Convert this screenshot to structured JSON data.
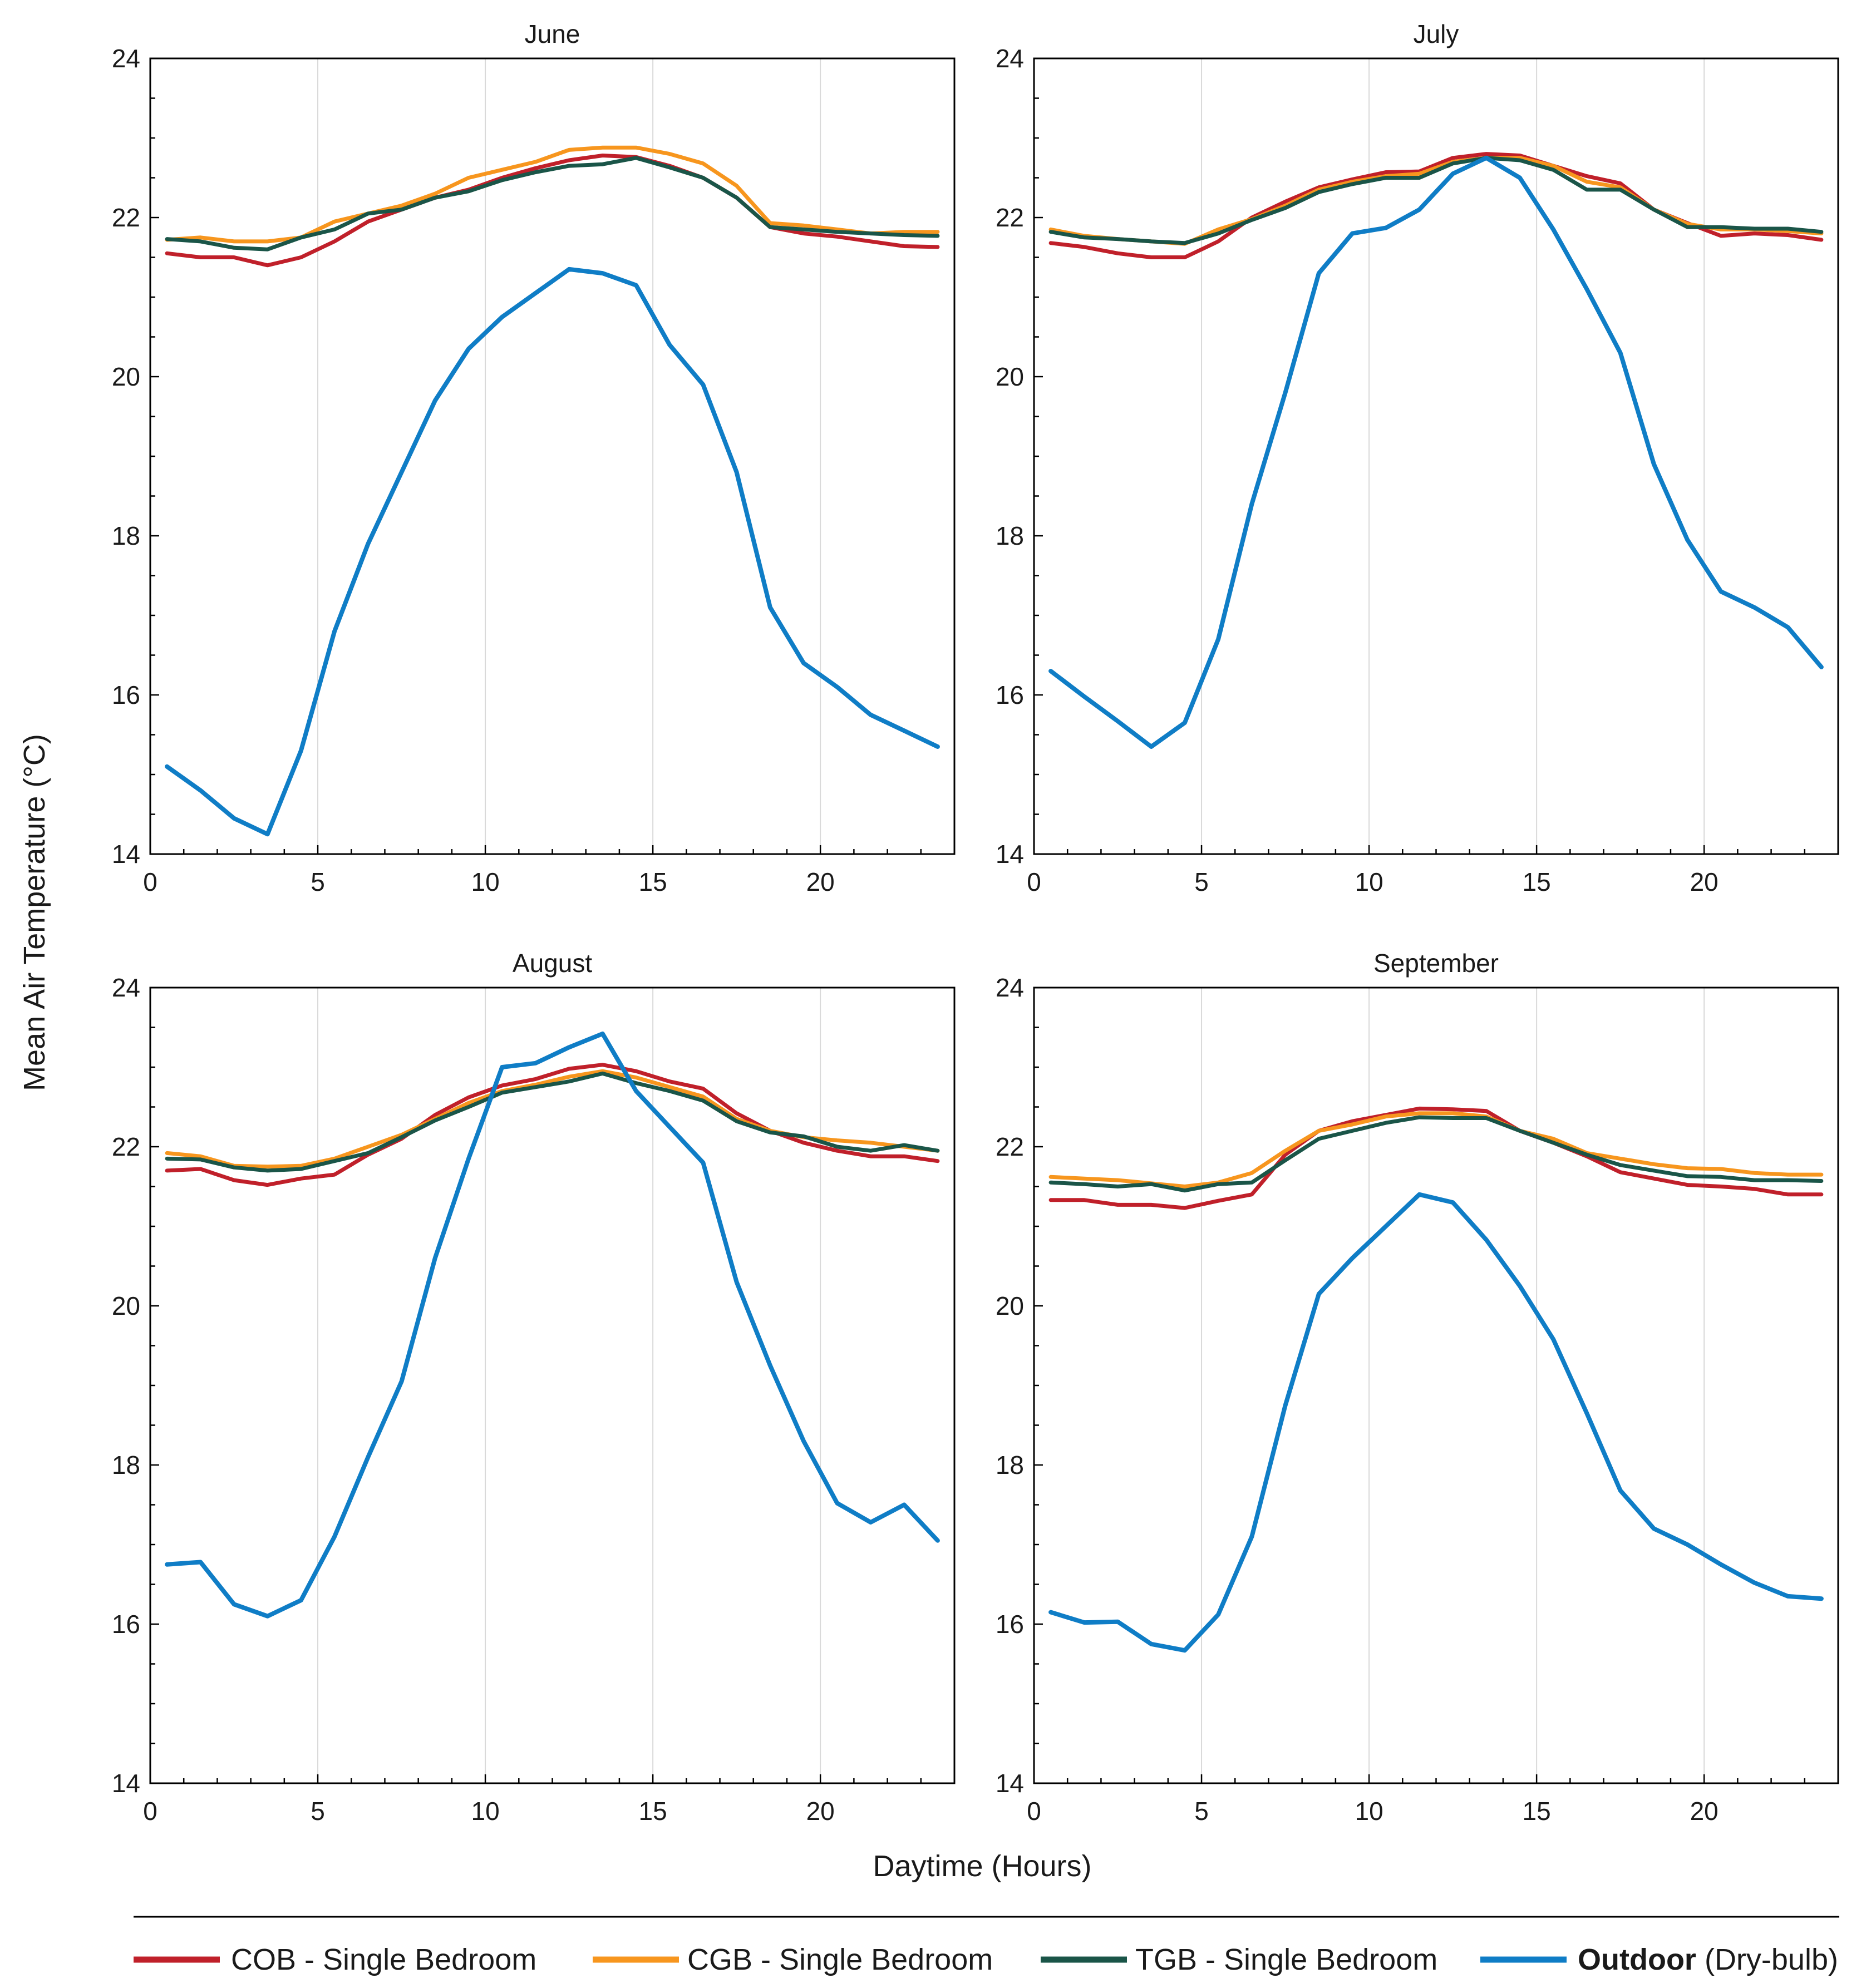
{
  "chart_data": {
    "type": "line",
    "ylabel": "Mean Air Temperature (°C)",
    "xlabel": "Daytime (Hours)",
    "xlim": [
      0,
      24
    ],
    "ylim": [
      14,
      24
    ],
    "xticks": [
      0,
      5,
      10,
      15,
      20
    ],
    "yticks": [
      14,
      16,
      18,
      20,
      22,
      24
    ],
    "grid": "vertical",
    "legend_position": "bottom",
    "hours": [
      0.5,
      1.5,
      2.5,
      3.5,
      4.5,
      5.5,
      6.5,
      7.5,
      8.5,
      9.5,
      10.5,
      11.5,
      12.5,
      13.5,
      14.5,
      15.5,
      16.5,
      17.5,
      18.5,
      19.5,
      20.5,
      21.5,
      22.5,
      23.5
    ],
    "series": [
      {
        "key": "cob",
        "name": "COB - Single Bedroom",
        "color": "#C0202A"
      },
      {
        "key": "cgb",
        "name": "CGB - Single Bedroom",
        "color": "#F7961E"
      },
      {
        "key": "tgb",
        "name": "TGB - Single Bedroom",
        "color": "#1A5548"
      },
      {
        "key": "outdoor",
        "name_bold": "Outdoor",
        "name_rest": " (Dry-bulb)",
        "color": "#0F7DC6"
      }
    ],
    "panels": [
      {
        "title": "June",
        "cob": [
          21.55,
          21.5,
          21.5,
          21.4,
          21.5,
          21.7,
          21.95,
          22.1,
          22.25,
          22.35,
          22.5,
          22.62,
          22.72,
          22.78,
          22.76,
          22.65,
          22.5,
          22.25,
          21.88,
          21.8,
          21.76,
          21.7,
          21.64,
          21.63
        ],
        "cgb": [
          21.72,
          21.75,
          21.7,
          21.7,
          21.75,
          21.95,
          22.05,
          22.15,
          22.3,
          22.5,
          22.6,
          22.7,
          22.85,
          22.88,
          22.88,
          22.8,
          22.68,
          22.4,
          21.93,
          21.9,
          21.85,
          21.8,
          21.82,
          21.82
        ],
        "tgb": [
          21.73,
          21.7,
          21.62,
          21.6,
          21.75,
          21.85,
          22.05,
          22.1,
          22.25,
          22.33,
          22.47,
          22.57,
          22.65,
          22.67,
          22.75,
          22.63,
          22.5,
          22.25,
          21.88,
          21.85,
          21.82,
          21.8,
          21.78,
          21.77
        ],
        "outdoor": [
          15.1,
          14.8,
          14.45,
          14.25,
          15.3,
          16.8,
          17.9,
          18.8,
          19.7,
          20.35,
          20.75,
          21.05,
          21.35,
          21.3,
          21.15,
          20.4,
          19.9,
          18.8,
          17.1,
          16.4,
          16.1,
          15.75,
          15.55,
          15.35
        ]
      },
      {
        "title": "July",
        "cob": [
          21.68,
          21.63,
          21.55,
          21.5,
          21.5,
          21.7,
          22.0,
          22.2,
          22.38,
          22.48,
          22.57,
          22.58,
          22.75,
          22.8,
          22.78,
          22.65,
          22.52,
          22.43,
          22.1,
          21.93,
          21.77,
          21.8,
          21.78,
          21.72
        ],
        "cgb": [
          21.85,
          21.77,
          21.73,
          21.7,
          21.67,
          21.85,
          21.98,
          22.15,
          22.35,
          22.45,
          22.52,
          22.55,
          22.7,
          22.75,
          22.75,
          22.65,
          22.45,
          22.38,
          22.1,
          21.92,
          21.85,
          21.85,
          21.83,
          21.8
        ],
        "tgb": [
          21.82,
          21.75,
          21.73,
          21.7,
          21.68,
          21.8,
          21.97,
          22.12,
          22.32,
          22.42,
          22.5,
          22.5,
          22.68,
          22.75,
          22.72,
          22.6,
          22.35,
          22.35,
          22.1,
          21.88,
          21.88,
          21.86,
          21.86,
          21.82
        ],
        "outdoor": [
          16.3,
          15.98,
          15.67,
          15.35,
          15.65,
          16.7,
          18.4,
          19.8,
          21.3,
          21.8,
          21.87,
          22.1,
          22.55,
          22.75,
          22.5,
          21.85,
          21.1,
          20.3,
          18.9,
          17.95,
          17.3,
          17.1,
          16.85,
          16.35
        ]
      },
      {
        "title": "August",
        "cob": [
          21.7,
          21.72,
          21.58,
          21.52,
          21.6,
          21.65,
          21.9,
          22.1,
          22.4,
          22.62,
          22.77,
          22.85,
          22.98,
          23.03,
          22.95,
          22.82,
          22.73,
          22.42,
          22.2,
          22.05,
          21.95,
          21.88,
          21.88,
          21.82
        ],
        "cgb": [
          21.92,
          21.88,
          21.76,
          21.75,
          21.76,
          21.85,
          22.0,
          22.15,
          22.35,
          22.55,
          22.7,
          22.78,
          22.88,
          22.95,
          22.87,
          22.75,
          22.63,
          22.35,
          22.2,
          22.12,
          22.08,
          22.05,
          22.0,
          21.95
        ],
        "tgb": [
          21.85,
          21.84,
          21.74,
          21.7,
          21.72,
          21.82,
          21.92,
          22.12,
          22.33,
          22.5,
          22.68,
          22.75,
          22.82,
          22.92,
          22.8,
          22.7,
          22.58,
          22.32,
          22.18,
          22.13,
          22.0,
          21.95,
          22.02,
          21.95
        ],
        "outdoor": [
          16.75,
          16.78,
          16.25,
          16.1,
          16.3,
          17.1,
          18.1,
          19.05,
          20.6,
          21.85,
          23.0,
          23.05,
          23.25,
          23.42,
          22.7,
          22.25,
          21.8,
          20.3,
          19.25,
          18.3,
          17.52,
          17.28,
          17.5,
          17.05
        ]
      },
      {
        "title": "September",
        "cob": [
          21.33,
          21.33,
          21.27,
          21.27,
          21.23,
          21.32,
          21.4,
          21.9,
          22.2,
          22.32,
          22.4,
          22.48,
          22.47,
          22.45,
          22.2,
          22.05,
          21.88,
          21.68,
          21.6,
          21.52,
          21.5,
          21.47,
          21.4,
          21.4
        ],
        "cgb": [
          21.62,
          21.6,
          21.58,
          21.54,
          21.5,
          21.55,
          21.67,
          21.95,
          22.2,
          22.28,
          22.38,
          22.42,
          22.42,
          22.38,
          22.2,
          22.1,
          21.92,
          21.85,
          21.78,
          21.73,
          21.72,
          21.67,
          21.65,
          21.65
        ],
        "tgb": [
          21.55,
          21.53,
          21.5,
          21.53,
          21.45,
          21.53,
          21.55,
          21.83,
          22.1,
          22.2,
          22.3,
          22.37,
          22.36,
          22.36,
          22.2,
          22.05,
          21.9,
          21.77,
          21.7,
          21.63,
          21.62,
          21.58,
          21.58,
          21.57
        ],
        "outdoor": [
          16.15,
          16.02,
          16.03,
          15.75,
          15.67,
          16.12,
          17.1,
          18.75,
          20.15,
          20.6,
          21.0,
          21.4,
          21.3,
          20.83,
          20.25,
          19.58,
          18.65,
          17.68,
          17.2,
          17.0,
          16.75,
          16.52,
          16.35,
          16.32
        ]
      }
    ]
  }
}
